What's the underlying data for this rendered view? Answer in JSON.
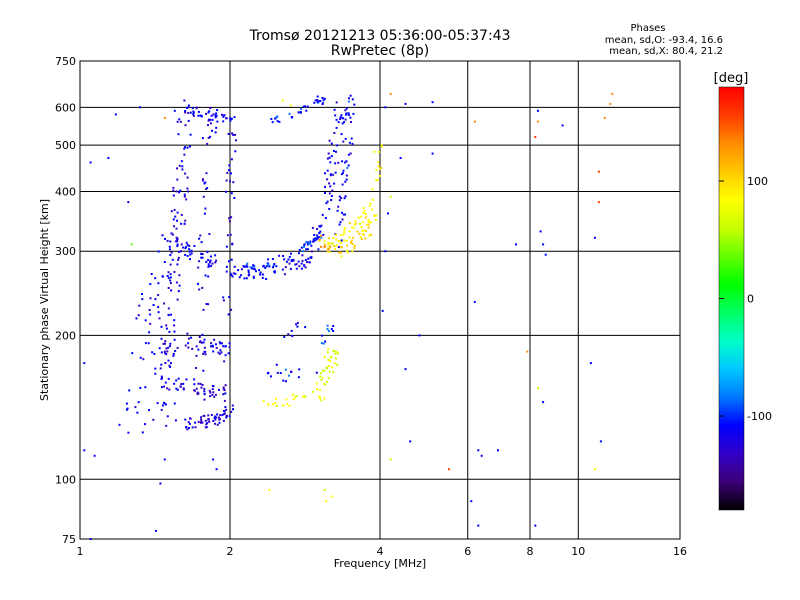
{
  "chart_data": {
    "type": "scatter",
    "title": "Tromsø 20121213 05:36:00-05:37:43",
    "subtitle": "RwPretec (8p)",
    "xlabel": "Frequency [MHz]",
    "ylabel": "Stationary phase Virtual Height [km]",
    "x_scale": "log",
    "y_scale": "log",
    "xlim": [
      1,
      16
    ],
    "ylim": [
      75,
      750
    ],
    "x_ticks": [
      1,
      2,
      4,
      6,
      8,
      10,
      16
    ],
    "x_tick_labels": [
      "1",
      "2",
      "4",
      "6",
      "8",
      "10",
      "16"
    ],
    "y_ticks": [
      75,
      100,
      200,
      300,
      400,
      500,
      600,
      750
    ],
    "y_tick_labels": [
      "75",
      "100",
      "200",
      "300",
      "400",
      "500",
      "600",
      "750"
    ],
    "grid": true,
    "stats": {
      "heading": "Phases",
      "line_o": "mean, sd,O: -93.4, 16.6",
      "line_x": "mean, sd,X: 80.4, 21.2"
    },
    "colorbar": {
      "label": "[deg]",
      "range": [
        -180,
        180
      ],
      "ticks": [
        100,
        0,
        -100
      ],
      "tick_labels": [
        "100",
        "0",
        "-100"
      ],
      "colormap": [
        "#000000",
        "#3c0078",
        "#3200c8",
        "#0000ff",
        "#0078ff",
        "#00c8ff",
        "#00ffc8",
        "#00ff64",
        "#00ff00",
        "#64ff00",
        "#c8ff00",
        "#ffff00",
        "#ffc800",
        "#ff8c00",
        "#ff3c00",
        "#ff0000"
      ]
    },
    "series": [
      {
        "polyline": [
          [
            1.52,
            130
          ],
          [
            1.5,
            150
          ],
          [
            1.52,
            180
          ],
          [
            1.5,
            210
          ],
          [
            1.52,
            250
          ],
          [
            1.54,
            290
          ],
          [
            1.57,
            350
          ],
          [
            1.6,
            430
          ],
          [
            1.63,
            520
          ],
          [
            1.63,
            580
          ]
        ],
        "phase": -120,
        "count": 120,
        "jitter": [
          0.04,
          0.07
        ]
      },
      {
        "polyline": [
          [
            1.42,
            135
          ],
          [
            1.45,
            180
          ],
          [
            1.45,
            240
          ],
          [
            1.5,
            300
          ]
        ],
        "phase": -115,
        "count": 40,
        "jitter": [
          0.05,
          0.08
        ]
      },
      {
        "polyline": [
          [
            1.65,
            600
          ],
          [
            1.75,
            580
          ],
          [
            1.9,
            570
          ],
          [
            2.05,
            565
          ]
        ],
        "phase": -110,
        "count": 40,
        "jitter": [
          0.02,
          0.02
        ]
      },
      {
        "polyline": [
          [
            1.3,
            130
          ],
          [
            1.3,
            160
          ],
          [
            1.32,
            200
          ],
          [
            1.35,
            250
          ]
        ],
        "phase": -110,
        "count": 25,
        "jitter": [
          0.05,
          0.08
        ]
      },
      {
        "polyline": [
          [
            1.62,
            130
          ],
          [
            1.75,
            132
          ],
          [
            1.9,
            133
          ],
          [
            2.0,
            140
          ]
        ],
        "phase": -125,
        "count": 60,
        "jitter": [
          0.02,
          0.03
        ]
      },
      {
        "polyline": [
          [
            1.55,
            160
          ],
          [
            1.75,
            155
          ],
          [
            1.95,
            152
          ]
        ],
        "phase": -122,
        "count": 40,
        "jitter": [
          0.03,
          0.03
        ]
      },
      {
        "polyline": [
          [
            1.6,
            195
          ],
          [
            1.8,
            190
          ],
          [
            1.98,
            185
          ]
        ],
        "phase": -120,
        "count": 35,
        "jitter": [
          0.03,
          0.04
        ]
      },
      {
        "polyline": [
          [
            1.75,
            135
          ],
          [
            1.75,
            200
          ],
          [
            1.77,
            280
          ],
          [
            1.8,
            400
          ],
          [
            1.82,
            520
          ],
          [
            1.85,
            580
          ]
        ],
        "phase": -118,
        "count": 50,
        "jitter": [
          0.03,
          0.06
        ]
      },
      {
        "polyline": [
          [
            1.95,
            140
          ],
          [
            1.97,
            200
          ],
          [
            1.98,
            280
          ],
          [
            2.0,
            380
          ],
          [
            2.02,
            480
          ],
          [
            2.02,
            560
          ]
        ],
        "phase": -116,
        "count": 40,
        "jitter": [
          0.02,
          0.06
        ]
      },
      {
        "polyline": [
          [
            1.5,
            320
          ],
          [
            1.65,
            300
          ],
          [
            1.85,
            285
          ],
          [
            2.05,
            272
          ],
          [
            2.3,
            270
          ],
          [
            2.6,
            278
          ],
          [
            2.8,
            288
          ],
          [
            3.0,
            300
          ]
        ],
        "phase": -112,
        "count": 110,
        "jitter": [
          0.03,
          0.03
        ]
      },
      {
        "polyline": [
          [
            2.1,
            275
          ],
          [
            2.4,
            282
          ],
          [
            2.7,
            295
          ],
          [
            2.9,
            310
          ],
          [
            3.05,
            325
          ]
        ],
        "phase": -105,
        "count": 60,
        "jitter": [
          0.02,
          0.02
        ]
      },
      {
        "polyline": [
          [
            2.4,
            560
          ],
          [
            2.6,
            570
          ],
          [
            2.8,
            585
          ],
          [
            2.95,
            610
          ],
          [
            3.1,
            630
          ]
        ],
        "phase": -108,
        "count": 30,
        "jitter": [
          0.02,
          0.02
        ]
      },
      {
        "polyline": [
          [
            3.0,
            320
          ],
          [
            3.1,
            380
          ],
          [
            3.2,
            450
          ],
          [
            3.3,
            540
          ],
          [
            3.35,
            600
          ]
        ],
        "phase": -115,
        "count": 60,
        "jitter": [
          0.03,
          0.04
        ]
      },
      {
        "polyline": [
          [
            3.3,
            300
          ],
          [
            3.35,
            380
          ],
          [
            3.42,
            460
          ],
          [
            3.48,
            560
          ],
          [
            3.5,
            620
          ]
        ],
        "phase": -110,
        "count": 45,
        "jitter": [
          0.02,
          0.04
        ]
      },
      {
        "polyline": [
          [
            3.1,
            305
          ],
          [
            3.3,
            320
          ],
          [
            3.55,
            340
          ],
          [
            3.8,
            370
          ],
          [
            3.95,
            430
          ],
          [
            3.98,
            520
          ]
        ],
        "phase": 85,
        "count": 60,
        "jitter": [
          0.02,
          0.03
        ]
      },
      {
        "polyline": [
          [
            3.3,
            295
          ],
          [
            3.5,
            310
          ],
          [
            3.75,
            330
          ],
          [
            3.9,
            360
          ]
        ],
        "phase": 100,
        "count": 40,
        "jitter": [
          0.02,
          0.03
        ]
      },
      {
        "polyline": [
          [
            3.05,
            320
          ],
          [
            3.15,
            300
          ]
        ],
        "phase": 120,
        "count": 10,
        "jitter": [
          0.02,
          0.02
        ]
      },
      {
        "polyline": [
          [
            3.0,
            150
          ],
          [
            3.1,
            160
          ],
          [
            3.2,
            175
          ],
          [
            3.25,
            185
          ]
        ],
        "phase": 65,
        "count": 40,
        "jitter": [
          0.03,
          0.05
        ]
      },
      {
        "polyline": [
          [
            2.35,
            145
          ],
          [
            2.6,
            145
          ],
          [
            2.85,
            150
          ]
        ],
        "phase": 75,
        "count": 18,
        "jitter": [
          0.03,
          0.02
        ]
      },
      {
        "polyline": [
          [
            2.4,
            170
          ],
          [
            2.6,
            165
          ],
          [
            2.9,
            170
          ]
        ],
        "phase": -108,
        "count": 15,
        "jitter": [
          0.04,
          0.04
        ]
      },
      {
        "polyline": [
          [
            3.05,
            190
          ],
          [
            3.15,
            205
          ],
          [
            3.25,
            210
          ]
        ],
        "phase": -100,
        "count": 10,
        "jitter": [
          0.02,
          0.03
        ]
      },
      {
        "polyline": [
          [
            2.5,
            200
          ],
          [
            2.7,
            210
          ],
          [
            2.9,
            215
          ]
        ],
        "phase": -115,
        "count": 8,
        "jitter": [
          0.04,
          0.03
        ]
      }
    ],
    "points": [
      [
        1.05,
        460,
        -110
      ],
      [
        1.02,
        175,
        -115
      ],
      [
        1.02,
        115,
        -115
      ],
      [
        1.07,
        112,
        -115
      ],
      [
        1.05,
        75,
        -110
      ],
      [
        1.14,
        470,
        -115
      ],
      [
        1.18,
        580,
        -120
      ],
      [
        1.2,
        130,
        -112
      ],
      [
        1.25,
        380,
        -110
      ],
      [
        1.27,
        310,
        40
      ],
      [
        1.32,
        600,
        -115
      ],
      [
        1.55,
        590,
        -120
      ],
      [
        1.62,
        620,
        -125
      ],
      [
        1.48,
        570,
        130
      ],
      [
        1.45,
        98,
        -100
      ],
      [
        1.42,
        78,
        -110
      ],
      [
        1.48,
        110,
        -115
      ],
      [
        1.85,
        110,
        -110
      ],
      [
        1.88,
        105,
        -115
      ],
      [
        2.4,
        95,
        90
      ],
      [
        3.12,
        90,
        80
      ],
      [
        3.1,
        95,
        70
      ],
      [
        3.2,
        92,
        75
      ],
      [
        2.55,
        620,
        95
      ],
      [
        2.65,
        605,
        90
      ],
      [
        3.0,
        632,
        -110
      ],
      [
        3.1,
        625,
        -115
      ],
      [
        4.15,
        360,
        -120
      ],
      [
        4.1,
        300,
        -115
      ],
      [
        4.2,
        390,
        50
      ],
      [
        4.05,
        225,
        -115
      ],
      [
        4.2,
        640,
        140
      ],
      [
        4.1,
        600,
        -115
      ],
      [
        4.5,
        170,
        -115
      ],
      [
        4.6,
        120,
        -110
      ],
      [
        4.2,
        110,
        70
      ],
      [
        4.8,
        200,
        -120
      ],
      [
        5.1,
        480,
        -115
      ],
      [
        4.5,
        610,
        -110
      ],
      [
        5.5,
        105,
        150
      ],
      [
        6.2,
        560,
        140
      ],
      [
        6.2,
        235,
        -120
      ],
      [
        6.3,
        115,
        -115
      ],
      [
        6.4,
        112,
        -110
      ],
      [
        6.1,
        90,
        -110
      ],
      [
        6.3,
        80,
        -115
      ],
      [
        6.9,
        115,
        -115
      ],
      [
        7.5,
        310,
        -115
      ],
      [
        7.9,
        185,
        140
      ],
      [
        8.2,
        520,
        160
      ],
      [
        8.3,
        560,
        140
      ],
      [
        8.4,
        330,
        -110
      ],
      [
        8.5,
        310,
        -120
      ],
      [
        8.6,
        295,
        -115
      ],
      [
        8.3,
        155,
        60
      ],
      [
        8.5,
        145,
        -110
      ],
      [
        8.2,
        80,
        -115
      ],
      [
        9.3,
        550,
        -120
      ],
      [
        8.3,
        590,
        -110
      ],
      [
        10.8,
        320,
        -115
      ],
      [
        11.1,
        120,
        -115
      ],
      [
        10.8,
        105,
        80
      ],
      [
        11.3,
        570,
        130
      ],
      [
        11.6,
        610,
        140
      ],
      [
        11.0,
        440,
        150
      ],
      [
        11.0,
        380,
        150
      ],
      [
        10.6,
        175,
        -115
      ],
      [
        11.7,
        640,
        120
      ],
      [
        5.1,
        615,
        -110
      ],
      [
        4.4,
        470,
        -115
      ]
    ]
  }
}
